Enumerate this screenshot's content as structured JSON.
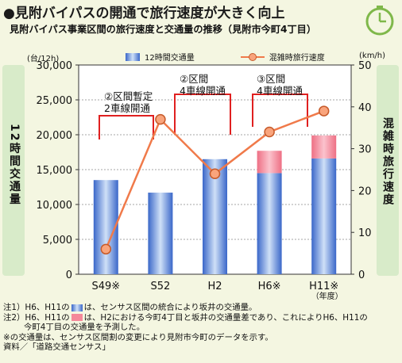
{
  "title": "●見附バイパスの開通で旅行速度が大きく向上",
  "subtitle": "見附バイパス事業区間の旅行速度と交通量の推移（見附市今町4丁目）",
  "chart_data": {
    "type": "bar+line",
    "categories": [
      "S49※",
      "S52",
      "H2",
      "H6※",
      "H11※"
    ],
    "x_sublabel": "（年度）",
    "left_axis": {
      "label": "12時間交通量",
      "unit": "(台/12h)",
      "ylim": [
        0,
        30000
      ],
      "ticks": [
        "0",
        "5,000",
        "10,000",
        "15,000",
        "20,000",
        "25,000",
        "30,000"
      ]
    },
    "right_axis": {
      "label": "混雑時旅行速度",
      "unit": "(km/h)",
      "ylim": [
        0,
        50
      ],
      "ticks": [
        "0",
        "10",
        "20",
        "30",
        "40",
        "50"
      ]
    },
    "series": [
      {
        "name": "12時間交通量",
        "kind": "bar",
        "values": [
          13500,
          11700,
          16500,
          17700,
          19900
        ]
      },
      {
        "name": "",
        "kind": "bar-stack",
        "values": [
          0,
          0,
          0,
          3200,
          3300
        ]
      },
      {
        "name": "混雑時旅行速度",
        "kind": "line",
        "values": [
          6,
          37,
          24,
          34,
          39
        ]
      }
    ],
    "annotations": [
      {
        "text_lines": [
          "②区間暫定",
          "2車線開通"
        ]
      },
      {
        "text_lines": [
          "②区間",
          "4車線開通"
        ]
      },
      {
        "text_lines": [
          "③区間",
          "4車線開通"
        ]
      }
    ],
    "colors": {
      "bar": "#3a67c9",
      "bar_light": "#cfe0f7",
      "stack": "#f5889a",
      "line": "#f07a4a",
      "marker_fill": "#f9a47c",
      "bracket": "#e02020"
    }
  },
  "notes": [
    {
      "prefix": "注1）H6、H11の",
      "swatch": "blue",
      "text": "は、センサス区間の統合により坂井の交通量。"
    },
    {
      "prefix": "注2）H6、H11の",
      "swatch": "pink",
      "text": "は、H2における今町4丁目と坂井の交通量差であり、これによりH6、H11の"
    },
    {
      "prefix": "",
      "swatch": "",
      "text": "今町4丁目の交通量を予測した。",
      "indent": true
    },
    {
      "prefix": "",
      "swatch": "",
      "text": "※の交通量は、センサス区間割の変更により見附市今町のデータを示す。"
    },
    {
      "prefix": "",
      "swatch": "",
      "text": "資料／「道路交通センサス」"
    }
  ]
}
